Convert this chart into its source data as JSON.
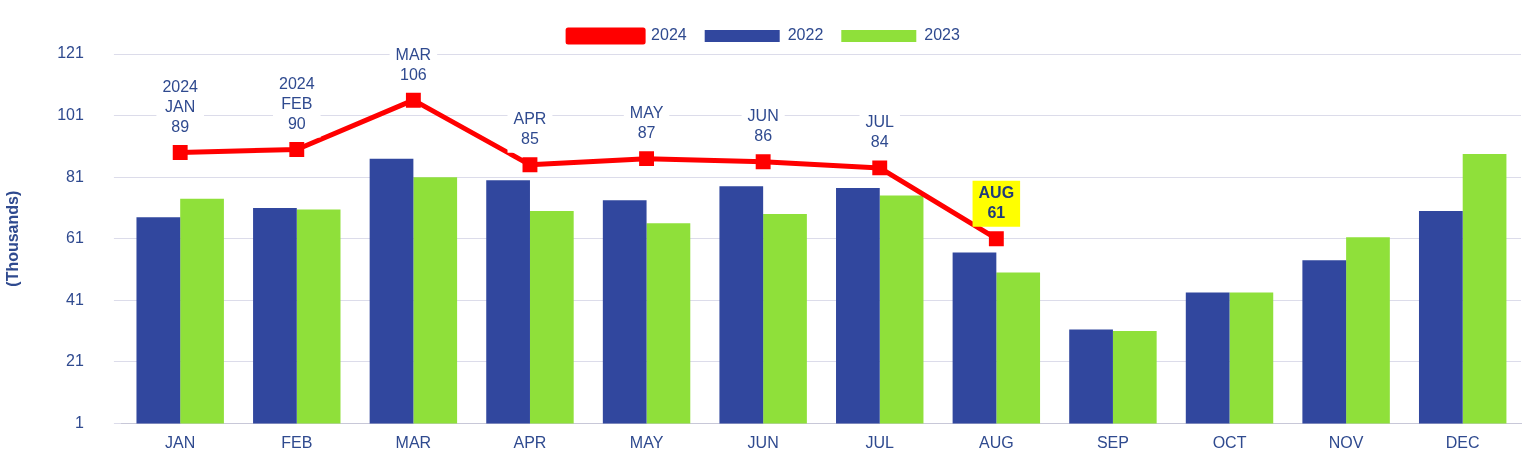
{
  "chart_data": {
    "type": "bar",
    "categories": [
      "JAN",
      "FEB",
      "MAR",
      "APR",
      "MAY",
      "JUN",
      "JUL",
      "AUG",
      "SEP",
      "OCT",
      "NOV",
      "DEC"
    ],
    "ylabel": "(Thousands)",
    "ylim": [
      1,
      121
    ],
    "yticks": [
      1,
      21,
      41,
      61,
      81,
      101,
      121
    ],
    "grid": "y",
    "legend": "top",
    "marker": "square",
    "series": [
      {
        "name": "2022",
        "color": "#31479e",
        "values": [
          68,
          71,
          87,
          80,
          73.5,
          78,
          77.5,
          56.5,
          31.5,
          43.5,
          54,
          70
        ]
      },
      {
        "name": "2023",
        "color": "#8fe03a",
        "values": [
          74,
          70.5,
          81,
          70,
          66,
          69,
          75,
          50,
          31,
          43.5,
          61.5,
          88.5
        ]
      },
      {
        "name": "2024",
        "type": "line",
        "color": "#ff0000",
        "values": [
          89,
          90,
          106,
          85,
          87,
          86,
          84,
          61,
          null,
          null,
          null,
          null
        ],
        "value_labels": [
          "2024\nJAN\n89",
          "2024\nFEB\n90",
          "MAR\n106",
          "APR\n85",
          "MAY\n87",
          "JUN\n86",
          "JUL\n84",
          "AUG\n61",
          null,
          null,
          null,
          null
        ]
      }
    ]
  }
}
